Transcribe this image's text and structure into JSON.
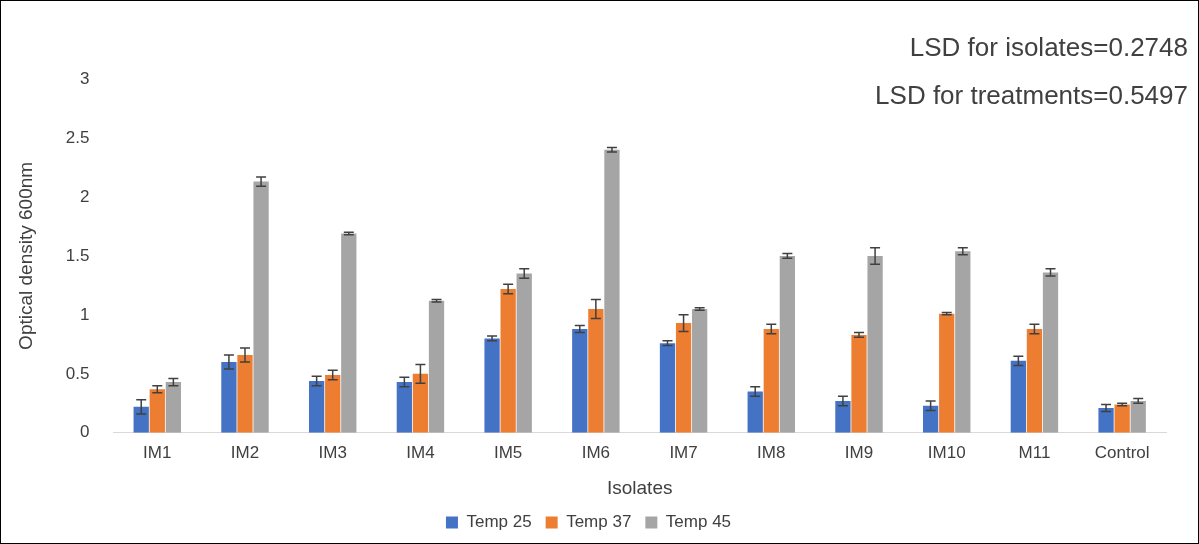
{
  "chart_data": {
    "type": "bar",
    "xlabel": "Isolates",
    "ylabel": "Optical density 600nm",
    "annotations": [
      "LSD for isolates=0.2748",
      "LSD for treatments=0.5497"
    ],
    "categories": [
      "IM1",
      "IM2",
      "IM3",
      "IM4",
      "IM5",
      "IM6",
      "IM7",
      "IM8",
      "IM9",
      "IM10",
      "M11",
      "Control"
    ],
    "series": [
      {
        "name": "Temp 25",
        "color": "#4472c4",
        "values": [
          0.22,
          0.6,
          0.44,
          0.43,
          0.8,
          0.88,
          0.76,
          0.35,
          0.27,
          0.23,
          0.61,
          0.21
        ],
        "errors": [
          0.06,
          0.06,
          0.04,
          0.04,
          0.02,
          0.03,
          0.02,
          0.04,
          0.04,
          0.04,
          0.04,
          0.03
        ]
      },
      {
        "name": "Temp 37",
        "color": "#ed7d31",
        "values": [
          0.37,
          0.66,
          0.49,
          0.5,
          1.22,
          1.05,
          0.93,
          0.88,
          0.83,
          1.01,
          0.88,
          0.24
        ],
        "errors": [
          0.03,
          0.06,
          0.04,
          0.08,
          0.04,
          0.08,
          0.07,
          0.04,
          0.02,
          0.01,
          0.04,
          0.01
        ]
      },
      {
        "name": "Temp 45",
        "color": "#a5a5a5",
        "values": [
          0.43,
          2.13,
          1.69,
          1.12,
          1.35,
          2.4,
          1.05,
          1.5,
          1.5,
          1.54,
          1.36,
          0.27
        ],
        "errors": [
          0.03,
          0.04,
          0.01,
          0.01,
          0.04,
          0.02,
          0.01,
          0.02,
          0.07,
          0.03,
          0.03,
          0.02
        ]
      }
    ],
    "ylim": [
      0,
      3
    ],
    "yticks": [
      0,
      0.5,
      1,
      1.5,
      2,
      2.5,
      3
    ],
    "grid": false,
    "legend": "bottom"
  }
}
